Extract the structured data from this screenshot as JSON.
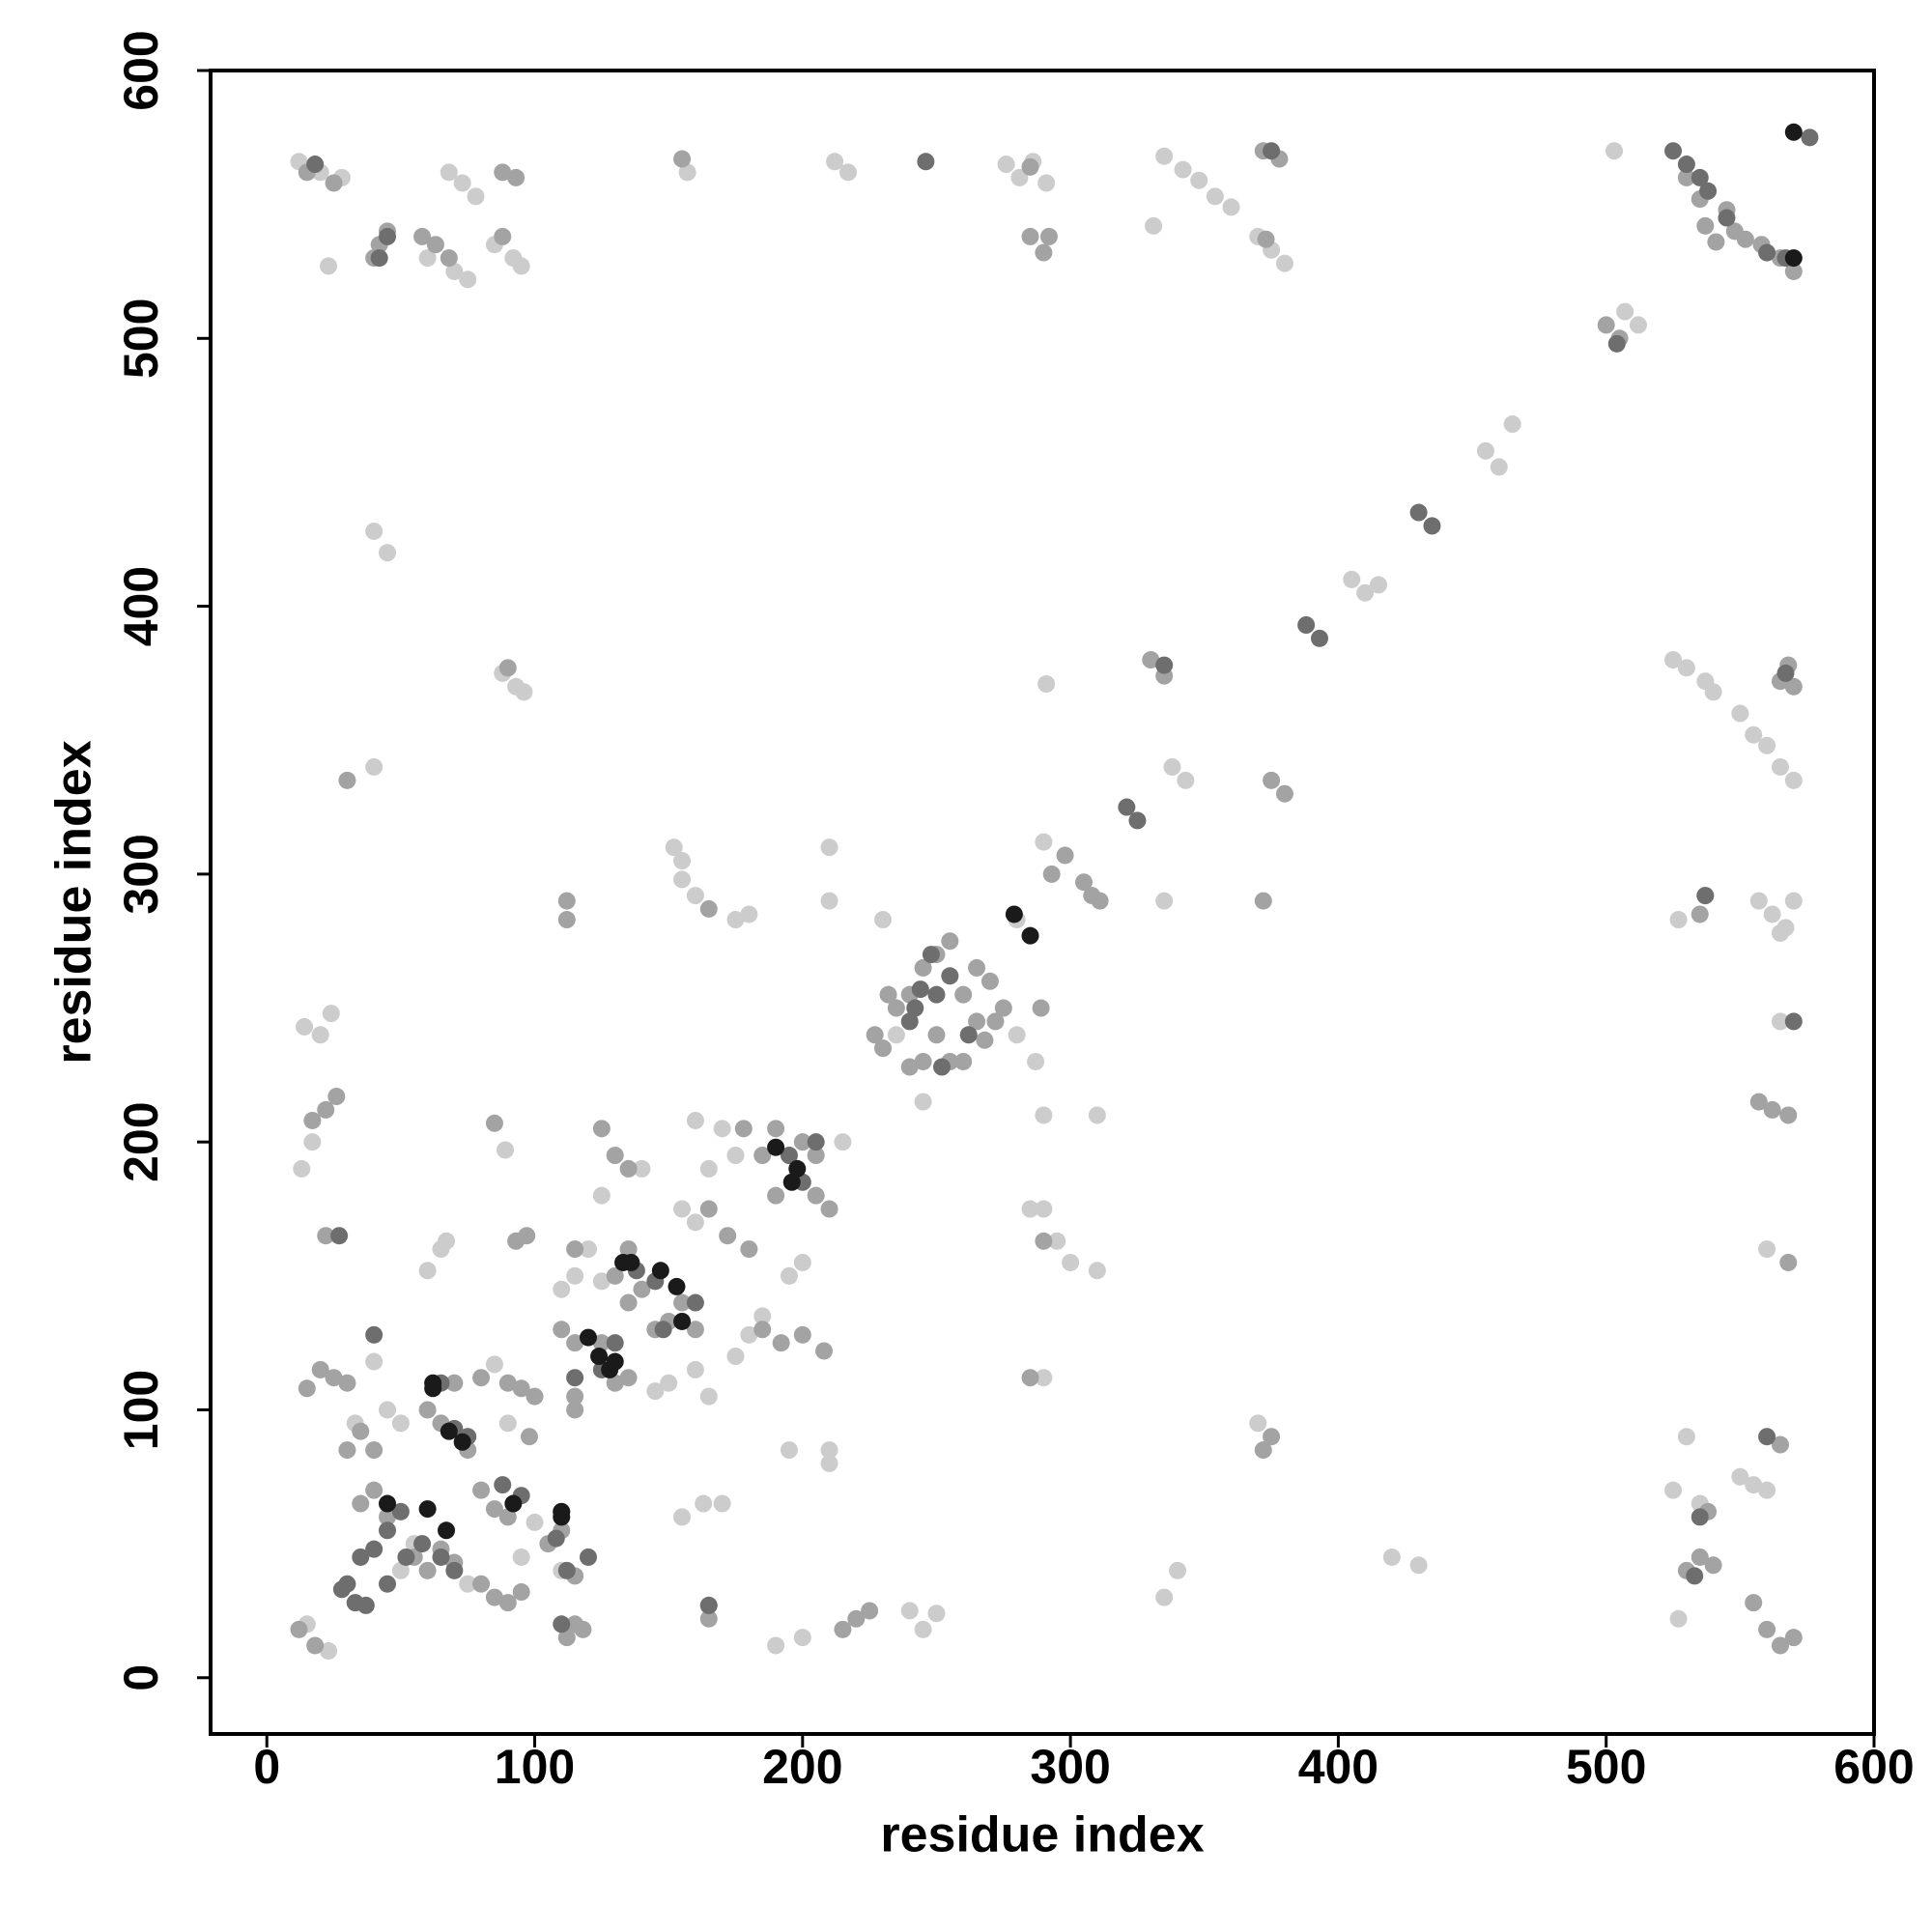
{
  "chart_data": {
    "type": "scatter",
    "x_label": "residue index",
    "y_label": "residue index",
    "xlim": [
      -21,
      600
    ],
    "ylim": [
      -21,
      600
    ],
    "xticks": [
      0,
      100,
      200,
      300,
      400,
      500,
      600
    ],
    "yticks": [
      0,
      100,
      200,
      300,
      400,
      500,
      600
    ],
    "grid": false,
    "series": [
      {
        "color": "#cccccc",
        "x": [
          12,
          20,
          28,
          68,
          73,
          78,
          85,
          92,
          95,
          23,
          60,
          70,
          75,
          157,
          212,
          217,
          276,
          281,
          286,
          291,
          335,
          342,
          348,
          354,
          360,
          331,
          370,
          375,
          380,
          503,
          507,
          512,
          460,
          455,
          465,
          410,
          405,
          415,
          40,
          45,
          88,
          93,
          96,
          40,
          291,
          338,
          343,
          525,
          530,
          537,
          540,
          550,
          555,
          560,
          565,
          570,
          152,
          155,
          155,
          160,
          175,
          180,
          210,
          210,
          290,
          335,
          527,
          557,
          562,
          567,
          570,
          565,
          280,
          14,
          20,
          24,
          13,
          17,
          89,
          285,
          290,
          295,
          300,
          310,
          290,
          310,
          60,
          65,
          67,
          110,
          115,
          120,
          125,
          155,
          160,
          165,
          170,
          175,
          160,
          175,
          180,
          185,
          195,
          200,
          145,
          150,
          160,
          165,
          40,
          45,
          50,
          85,
          90,
          33,
          50,
          55,
          75,
          95,
          100,
          110,
          15,
          23,
          195,
          210,
          210,
          155,
          163,
          170,
          190,
          200,
          240,
          245,
          250,
          335,
          340,
          420,
          430,
          370,
          527,
          550,
          555,
          560,
          530,
          535,
          525,
          140,
          215,
          125,
          230,
          280,
          235,
          245,
          287,
          290,
          565,
          560
        ],
        "y": [
          566,
          562,
          560,
          562,
          558,
          553,
          535,
          530,
          527,
          527,
          530,
          525,
          522,
          562,
          566,
          562,
          565,
          560,
          566,
          558,
          568,
          563,
          559,
          553,
          549,
          542,
          538,
          533,
          528,
          570,
          510,
          505,
          452,
          458,
          468,
          405,
          410,
          408,
          428,
          420,
          375,
          370,
          368,
          340,
          371,
          340,
          335,
          380,
          377,
          372,
          368,
          360,
          352,
          348,
          340,
          335,
          310,
          305,
          298,
          292,
          283,
          285,
          310,
          290,
          312,
          290,
          283,
          290,
          285,
          280,
          290,
          278,
          283,
          243,
          240,
          248,
          190,
          200,
          197,
          175,
          175,
          163,
          155,
          152,
          210,
          210,
          152,
          160,
          163,
          145,
          150,
          160,
          148,
          175,
          170,
          190,
          205,
          195,
          208,
          120,
          128,
          135,
          150,
          155,
          107,
          110,
          115,
          105,
          118,
          100,
          95,
          117,
          95,
          95,
          40,
          50,
          35,
          45,
          58,
          40,
          20,
          10,
          85,
          85,
          80,
          60,
          65,
          65,
          12,
          15,
          25,
          18,
          24,
          30,
          40,
          45,
          42,
          95,
          22,
          75,
          72,
          70,
          90,
          65,
          70,
          190,
          200,
          180,
          283,
          240,
          240,
          215,
          230,
          112,
          245,
          160
        ]
      },
      {
        "color": "#a3a3a3",
        "x": [
          15,
          25,
          42,
          45,
          40,
          58,
          63,
          68,
          88,
          93,
          88,
          155,
          285,
          290,
          292,
          285,
          372,
          378,
          373,
          530,
          535,
          545,
          548,
          552,
          558,
          565,
          570,
          541,
          537,
          500,
          505,
          330,
          335,
          90,
          30,
          375,
          380,
          565,
          568,
          570,
          293,
          298,
          305,
          311,
          308,
          165,
          112,
          112,
          535,
          537,
          372,
          289,
          230,
          235,
          240,
          245,
          250,
          255,
          260,
          265,
          270,
          275,
          240,
          250,
          265,
          227,
          232,
          245,
          260,
          268,
          272,
          255,
          17,
          22,
          26,
          22,
          85,
          290,
          93,
          97,
          115,
          130,
          135,
          140,
          145,
          150,
          155,
          135,
          160,
          130,
          125,
          135,
          165,
          172,
          180,
          178,
          185,
          190,
          200,
          205,
          210,
          205,
          190,
          185,
          192,
          200,
          208,
          110,
          115,
          125,
          130,
          135,
          115,
          60,
          65,
          70,
          75,
          80,
          90,
          95,
          100,
          15,
          20,
          25,
          30,
          35,
          40,
          30,
          35,
          40,
          45,
          55,
          60,
          65,
          70,
          80,
          85,
          90,
          85,
          90,
          95,
          105,
          110,
          115,
          112,
          115,
          118,
          12,
          18,
          165,
          165,
          215,
          220,
          225,
          375,
          372,
          530,
          535,
          538,
          540,
          565,
          555,
          560,
          565,
          570,
          568,
          557,
          562,
          568,
          285,
          115,
          98,
          80
        ],
        "y": [
          562,
          558,
          535,
          540,
          530,
          538,
          535,
          530,
          562,
          560,
          538,
          567,
          538,
          532,
          538,
          564,
          570,
          567,
          537,
          560,
          552,
          548,
          540,
          537,
          535,
          530,
          525,
          536,
          542,
          505,
          500,
          380,
          374,
          377,
          335,
          335,
          330,
          372,
          378,
          370,
          300,
          307,
          297,
          290,
          292,
          287,
          290,
          283,
          285,
          292,
          290,
          250,
          235,
          250,
          228,
          265,
          240,
          230,
          255,
          245,
          260,
          250,
          255,
          270,
          265,
          240,
          255,
          230,
          230,
          238,
          245,
          275,
          208,
          212,
          217,
          165,
          207,
          163,
          163,
          165,
          160,
          150,
          140,
          145,
          130,
          133,
          140,
          160,
          130,
          195,
          205,
          190,
          175,
          165,
          160,
          205,
          195,
          205,
          200,
          180,
          175,
          195,
          180,
          130,
          125,
          128,
          122,
          130,
          125,
          125,
          110,
          112,
          100,
          100,
          95,
          110,
          85,
          112,
          110,
          108,
          105,
          108,
          115,
          112,
          110,
          92,
          85,
          85,
          65,
          70,
          60,
          45,
          40,
          48,
          43,
          70,
          63,
          60,
          30,
          28,
          32,
          50,
          55,
          38,
          15,
          20,
          18,
          18,
          12,
          27,
          22,
          18,
          22,
          25,
          90,
          85,
          40,
          45,
          62,
          42,
          87,
          28,
          18,
          12,
          15,
          155,
          215,
          212,
          210,
          112,
          105,
          90,
          35
        ]
      },
      {
        "color": "#6e6e6e",
        "x": [
          18,
          45,
          42,
          246,
          375,
          525,
          530,
          535,
          538,
          545,
          560,
          567,
          576,
          504,
          430,
          435,
          388,
          393,
          335,
          567,
          537,
          570,
          248,
          244,
          250,
          255,
          262,
          240,
          242,
          252,
          27,
          40,
          40,
          28,
          30,
          33,
          37,
          35,
          45,
          52,
          45,
          65,
          58,
          70,
          50,
          88,
          95,
          108,
          110,
          112,
          110,
          120,
          138,
          145,
          160,
          115,
          130,
          125,
          195,
          200,
          205,
          75,
          70,
          65,
          165,
          325,
          321,
          560,
          535,
          533,
          148
        ],
        "y": [
          565,
          538,
          530,
          566,
          570,
          570,
          565,
          560,
          555,
          545,
          532,
          530,
          575,
          498,
          435,
          430,
          393,
          388,
          378,
          375,
          292,
          245,
          270,
          257,
          255,
          262,
          240,
          245,
          250,
          228,
          165,
          128,
          48,
          33,
          35,
          28,
          27,
          45,
          35,
          45,
          55,
          45,
          50,
          40,
          62,
          72,
          68,
          52,
          62,
          40,
          20,
          45,
          152,
          148,
          140,
          112,
          125,
          115,
          195,
          185,
          200,
          90,
          93,
          110,
          27,
          320,
          325,
          90,
          60,
          38,
          130
        ]
      },
      {
        "color": "#1a1a1a",
        "x": [
          285,
          279,
          136,
          147,
          153,
          155,
          190,
          198,
          196,
          120,
          124,
          128,
          62,
          68,
          73,
          60,
          67,
          45,
          92,
          110,
          133,
          62,
          110,
          130,
          570,
          570
        ],
        "y": [
          277,
          285,
          155,
          152,
          146,
          133,
          198,
          190,
          185,
          127,
          120,
          115,
          110,
          92,
          88,
          63,
          55,
          65,
          65,
          60,
          155,
          108,
          62,
          118,
          577,
          530
        ]
      }
    ]
  }
}
